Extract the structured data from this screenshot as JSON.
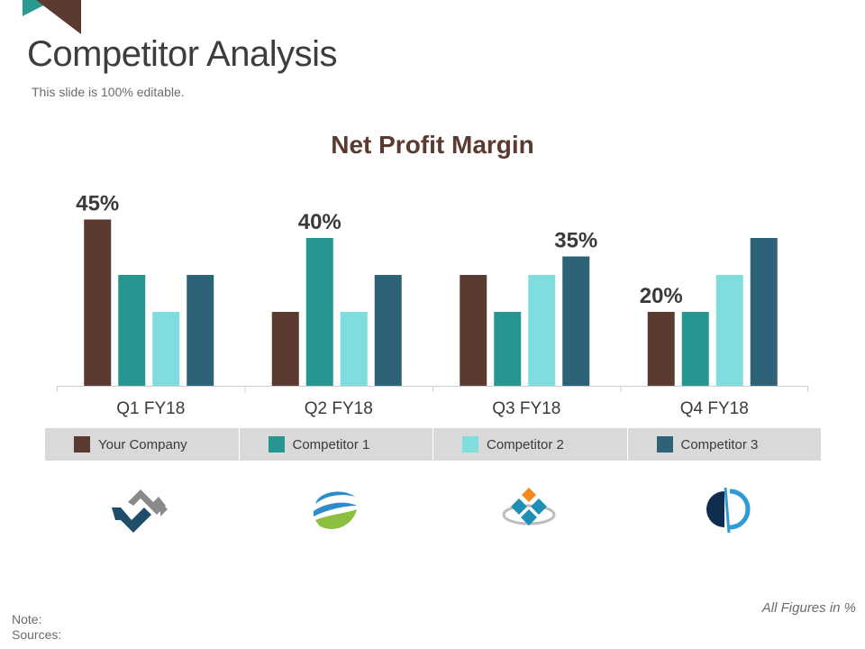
{
  "slide": {
    "title": "Competitor Analysis",
    "subtitle": "This slide is 100% editable.",
    "figures_note": "All Figures  in %",
    "note_label": "Note:",
    "sources_label": "Sources:"
  },
  "colors": {
    "accent_teal": "#2a9a90",
    "accent_brown": "#5b3a31"
  },
  "logos": [
    {
      "icon": "arrows-logo-icon"
    },
    {
      "icon": "swoosh-globe-logo-icon"
    },
    {
      "icon": "diamond-tiles-logo-icon"
    },
    {
      "icon": "split-circle-logo-icon"
    }
  ],
  "chart_data": {
    "type": "bar",
    "title": "Net Profit Margin",
    "categories": [
      "Q1 FY18",
      "Q2 FY18",
      "Q3 FY18",
      "Q4 FY18"
    ],
    "series": [
      {
        "name": "Your Company",
        "color": "#5b3a31",
        "values": [
          45,
          20,
          30,
          20
        ]
      },
      {
        "name": "Competitor 1",
        "color": "#279590",
        "values": [
          30,
          40,
          20,
          20
        ]
      },
      {
        "name": "Competitor 2",
        "color": "#7fdedd",
        "values": [
          20,
          20,
          30,
          30
        ]
      },
      {
        "name": "Competitor 3",
        "color": "#2d6278",
        "values": [
          30,
          30,
          35,
          40
        ]
      }
    ],
    "data_labels": [
      {
        "category": "Q1 FY18",
        "series": "Your Company",
        "text": "45%"
      },
      {
        "category": "Q2 FY18",
        "series": "Competitor 1",
        "text": "40%"
      },
      {
        "category": "Q3 FY18",
        "series": "Competitor 3",
        "text": "35%"
      },
      {
        "category": "Q4 FY18",
        "series": "Your Company",
        "text": "20%"
      }
    ],
    "ylim": [
      0,
      45
    ],
    "xlabel": "",
    "ylabel": "",
    "grid": false,
    "legend": "bottom"
  }
}
